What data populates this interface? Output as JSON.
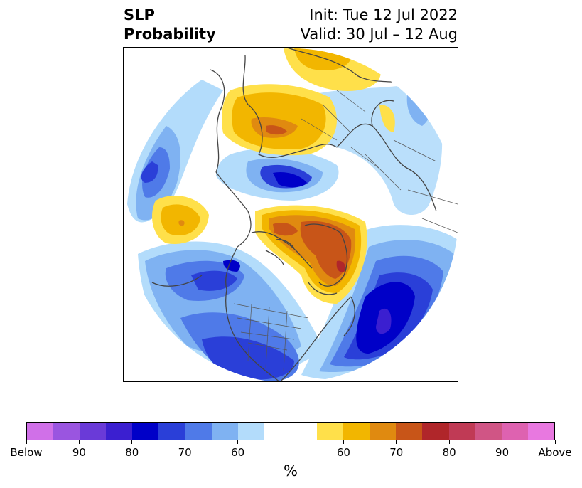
{
  "title": {
    "left_line1": "SLP",
    "left_line2": "Probability",
    "right_line1": "Init: Tue 12 Jul 2022",
    "right_line2": "Valid: 30 Jul – 12 Aug"
  },
  "colorbar": {
    "unit": "%",
    "colors": [
      "#d070e8",
      "#9a55e0",
      "#6a3ad8",
      "#3b1fd0",
      "#0000c8",
      "#2a3fd8",
      "#4f7ae8",
      "#7fb2f2",
      "#b3dcfb",
      "#ffffff",
      "#ffffff",
      "#ffe04a",
      "#f2b600",
      "#e08a10",
      "#c85518",
      "#b0262a",
      "#c03a55",
      "#d05585",
      "#de62b0",
      "#e878e0"
    ],
    "tick_labels": [
      "Below",
      "90",
      "80",
      "70",
      "60",
      "60",
      "70",
      "80",
      "90",
      "Above"
    ]
  },
  "map": {
    "projection": "north-polar-stereographic",
    "shading": {
      "below_colors": [
        "#b3dcfb",
        "#7fb2f2",
        "#4f7ae8",
        "#2a3fd8",
        "#0000c8",
        "#3b1fd0"
      ],
      "above_colors": [
        "#ffe04a",
        "#f2b600",
        "#e08a10",
        "#c85518",
        "#b0262a"
      ]
    }
  }
}
